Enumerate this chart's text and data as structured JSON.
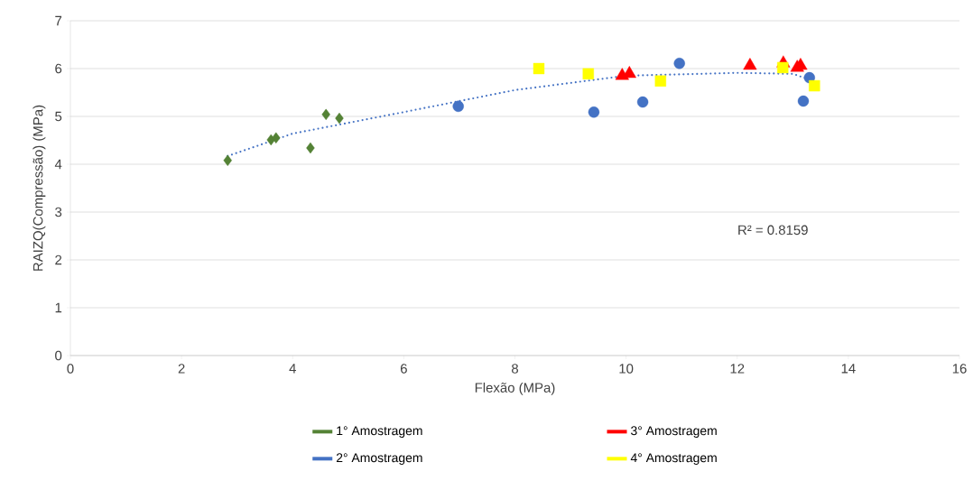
{
  "chart_data": {
    "type": "scatter",
    "xlabel": "Flexão (MPa)",
    "ylabel": "RAIZQ(Compressão) (MPa)",
    "xlim": [
      0,
      16
    ],
    "xticks": [
      0,
      2,
      4,
      6,
      8,
      10,
      12,
      14,
      16
    ],
    "ylim": [
      0,
      7
    ],
    "yticks": [
      0,
      1,
      2,
      3,
      4,
      5,
      6,
      7
    ],
    "grid": "y",
    "legend": "bottom",
    "annotations": [
      "R² = 0.8159"
    ],
    "series": [
      {
        "name": "1° Amostragem",
        "color": "#548235",
        "marker": "diamond",
        "x": [
          2.83,
          3.61,
          3.7,
          4.32,
          4.6,
          4.84
        ],
        "values": [
          4.08,
          4.51,
          4.55,
          4.34,
          5.04,
          4.96
        ]
      },
      {
        "name": "2° Amostragem",
        "color": "#4472c4",
        "marker": "circle",
        "x": [
          6.98,
          9.42,
          10.3,
          10.96,
          13.3,
          13.19
        ],
        "values": [
          5.21,
          5.09,
          5.3,
          6.11,
          5.81,
          5.32
        ]
      },
      {
        "name": "3° Amostragem",
        "color": "#ff0000",
        "marker": "triangle",
        "x": [
          9.93,
          10.06,
          12.23,
          12.83,
          13.08,
          13.14
        ],
        "values": [
          5.85,
          5.89,
          6.06,
          6.11,
          6.02,
          6.06
        ]
      },
      {
        "name": "4° Amostragem",
        "color": "#ffff00",
        "marker": "square",
        "x": [
          8.43,
          9.32,
          10.62,
          12.82,
          13.39
        ],
        "values": [
          6.0,
          5.89,
          5.74,
          6.02,
          5.64
        ]
      },
      {
        "type": "line",
        "color": "#4472c4",
        "marker": "none",
        "line_style": "dotted",
        "x": [
          2.83,
          4,
          6,
          8,
          10,
          12,
          13,
          13.3
        ],
        "values": [
          4.17,
          4.64,
          5.09,
          5.55,
          5.85,
          5.91,
          5.89,
          5.77
        ]
      }
    ]
  }
}
